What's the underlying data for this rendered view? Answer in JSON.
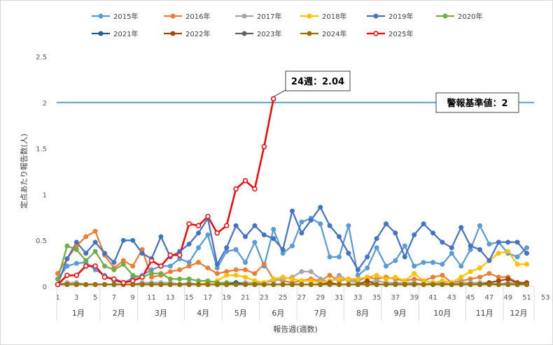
{
  "chart_data": {
    "type": "line",
    "xlabel": "報告週(週数)",
    "ylabel": "定点あたり報告数(人)",
    "ylim": [
      0,
      2.5
    ],
    "yticks": [
      "0",
      "0.5",
      "1",
      "1.5",
      "2",
      "2.5"
    ],
    "xlim": [
      1,
      53
    ],
    "xticks": [
      1,
      3,
      5,
      7,
      9,
      11,
      13,
      15,
      17,
      19,
      21,
      23,
      25,
      27,
      29,
      31,
      33,
      35,
      37,
      39,
      41,
      43,
      45,
      47,
      49,
      51,
      53
    ],
    "months": [
      {
        "label": "1月",
        "start": 1,
        "end": 5
      },
      {
        "label": "2月",
        "start": 6,
        "end": 9
      },
      {
        "label": "3月",
        "start": 10,
        "end": 14
      },
      {
        "label": "4月",
        "start": 15,
        "end": 18
      },
      {
        "label": "5月",
        "start": 19,
        "end": 22
      },
      {
        "label": "6月",
        "start": 23,
        "end": 26
      },
      {
        "label": "7月",
        "start": 27,
        "end": 31
      },
      {
        "label": "8月",
        "start": 32,
        "end": 35
      },
      {
        "label": "9月",
        "start": 36,
        "end": 39
      },
      {
        "label": "10月",
        "start": 40,
        "end": 44
      },
      {
        "label": "11月",
        "start": 45,
        "end": 48
      },
      {
        "label": "12月",
        "start": 49,
        "end": 53
      }
    ],
    "grid": false,
    "legend_position": "top",
    "threshold": {
      "value": 2,
      "label": "警報基準値：2",
      "color": "#5b9bd5"
    },
    "annotation": {
      "label": "24週：2.04",
      "x": 24,
      "y": 2.04
    },
    "series": [
      {
        "name": "2015年",
        "color": "#5b9bd5",
        "values": [
          0.08,
          0.22,
          0.25,
          0.26,
          0.18,
          0.12,
          0.06,
          0.04,
          0.09,
          0.12,
          0.18,
          0.22,
          0.22,
          0.3,
          0.26,
          0.42,
          0.56,
          0.2,
          0.38,
          0.4,
          0.26,
          0.48,
          0.22,
          0.62,
          0.36,
          0.44,
          0.7,
          0.74,
          0.68,
          0.32,
          0.32,
          0.66,
          0.12,
          0.2,
          0.42,
          0.22,
          0.28,
          0.44,
          0.22,
          0.26,
          0.26,
          0.24,
          0.36,
          0.22,
          0.4,
          0.66,
          0.46,
          0.48,
          0.36,
          0.32,
          0.42
        ]
      },
      {
        "name": "2016年",
        "color": "#ed7d31",
        "values": [
          0.14,
          0.3,
          0.44,
          0.54,
          0.6,
          0.34,
          0.2,
          0.28,
          0.22,
          0.4,
          0.1,
          0.12,
          0.16,
          0.18,
          0.22,
          0.26,
          0.2,
          0.14,
          0.16,
          0.18,
          0.18,
          0.14,
          0.24,
          0.08,
          0.06,
          0.04,
          0.06,
          0.08,
          0.06,
          0.12,
          0.06,
          0.08,
          0.06,
          0.1,
          0.08,
          0.1,
          0.08,
          0.06,
          0.08,
          0.06,
          0.1,
          0.12,
          0.04,
          0.06,
          0.08,
          0.1,
          0.14,
          0.1,
          0.1,
          0.04,
          0.04
        ]
      },
      {
        "name": "2017年",
        "color": "#a5a5a5",
        "values": [
          0.02,
          0.04,
          0.04,
          0.02,
          0.02,
          0.02,
          0.02,
          0.02,
          0.02,
          0.04,
          0.04,
          0.04,
          0.04,
          0.02,
          0.04,
          0.02,
          0.02,
          0.02,
          0.04,
          0.04,
          0.04,
          0.04,
          0.04,
          0.06,
          0.08,
          0.1,
          0.16,
          0.16,
          0.08,
          0.04,
          0.12,
          0.06,
          0.04,
          0.04,
          0.06,
          0.04,
          0.04,
          0.04,
          0.04,
          0.02,
          0.04,
          0.04,
          0.02,
          0.04,
          0.04,
          0.04,
          0.04,
          0.02,
          0.04,
          0.04,
          0.02
        ]
      },
      {
        "name": "2018年",
        "color": "#ffc000",
        "values": [
          0.02,
          0.02,
          0.02,
          0.02,
          0.02,
          0.02,
          0.02,
          0.02,
          0.02,
          0.02,
          0.02,
          0.02,
          0.02,
          0.02,
          0.02,
          0.02,
          0.04,
          0.06,
          0.12,
          0.12,
          0.1,
          0.06,
          0.04,
          0.08,
          0.1,
          0.08,
          0.06,
          0.06,
          0.04,
          0.06,
          0.08,
          0.08,
          0.08,
          0.1,
          0.12,
          0.08,
          0.1,
          0.06,
          0.14,
          0.06,
          0.04,
          0.06,
          0.04,
          0.1,
          0.16,
          0.2,
          0.28,
          0.36,
          0.38,
          0.24,
          0.24
        ]
      },
      {
        "name": "2019年",
        "color": "#4472c4",
        "values": [
          0.02,
          0.3,
          0.48,
          0.36,
          0.48,
          0.36,
          0.26,
          0.5,
          0.5,
          0.36,
          0.3,
          0.54,
          0.32,
          0.38,
          0.46,
          0.58,
          0.74,
          0.24,
          0.42,
          0.66,
          0.54,
          0.66,
          0.56,
          0.52,
          0.4,
          0.82,
          0.58,
          0.72,
          0.86,
          0.66,
          0.54,
          0.36,
          0.18,
          0.32,
          0.52,
          0.68,
          0.58,
          0.32,
          0.56,
          0.68,
          0.58,
          0.48,
          0.42,
          0.64,
          0.44,
          0.4,
          0.28,
          0.48,
          0.48,
          0.48,
          0.36
        ]
      },
      {
        "name": "2020年",
        "color": "#70ad47",
        "values": [
          0.08,
          0.44,
          0.4,
          0.28,
          0.38,
          0.22,
          0.18,
          0.24,
          0.12,
          0.1,
          0.14,
          0.14,
          0.08,
          0.08,
          0.08,
          0.06,
          0.06,
          0.04,
          0.04,
          0.04,
          0.02,
          0.02,
          0.02,
          0.02,
          0.02,
          0.02,
          0.02,
          0.02,
          0.02,
          0.02,
          0.02,
          0.02,
          0.02,
          0.02,
          0.02,
          0.02,
          0.02,
          0.02,
          0.02,
          0.02,
          0.02,
          0.02,
          0.02,
          0.02,
          0.02,
          0.02,
          0.02,
          0.02,
          0.02,
          0.02,
          0.02
        ]
      },
      {
        "name": "2021年",
        "color": "#255e91",
        "values": [
          0.02,
          0.02,
          0.02,
          0.02,
          0.02,
          0.02,
          0.02,
          0.02,
          0.02,
          0.02,
          0.02,
          0.02,
          0.02,
          0.02,
          0.02,
          0.02,
          0.02,
          0.02,
          0.02,
          0.04,
          0.02,
          0.02,
          0.02,
          0.02,
          0.02,
          0.02,
          0.02,
          0.02,
          0.02,
          0.02,
          0.02,
          0.02,
          0.02,
          0.02,
          0.02,
          0.02,
          0.02,
          0.02,
          0.02,
          0.02,
          0.02,
          0.02,
          0.02,
          0.02,
          0.02,
          0.02,
          0.02,
          0.02,
          0.02,
          0.02,
          0.02
        ]
      },
      {
        "name": "2022年",
        "color": "#9e480e",
        "values": [
          0.02,
          0.02,
          0.02,
          0.02,
          0.02,
          0.02,
          0.02,
          0.02,
          0.02,
          0.02,
          0.02,
          0.02,
          0.02,
          0.02,
          0.02,
          0.02,
          0.02,
          0.02,
          0.02,
          0.02,
          0.02,
          0.02,
          0.02,
          0.02,
          0.02,
          0.02,
          0.02,
          0.02,
          0.02,
          0.04,
          0.02,
          0.02,
          0.02,
          0.06,
          0.02,
          0.02,
          0.02,
          0.02,
          0.02,
          0.02,
          0.02,
          0.02,
          0.02,
          0.02,
          0.02,
          0.02,
          0.04,
          0.06,
          0.08,
          0.04,
          0.04
        ]
      },
      {
        "name": "2023年",
        "color": "#636363",
        "values": [
          0.02,
          0.02,
          0.02,
          0.02,
          0.02,
          0.02,
          0.02,
          0.02,
          0.02,
          0.02,
          0.02,
          0.02,
          0.02,
          0.02,
          0.02,
          0.02,
          0.02,
          0.02,
          0.02,
          0.02,
          0.02,
          0.02,
          0.02,
          0.02,
          0.02,
          0.02,
          0.02,
          0.02,
          0.02,
          0.02,
          0.02,
          0.02,
          0.02,
          0.02,
          0.02,
          0.02,
          0.02,
          0.02,
          0.02,
          0.02,
          0.02,
          0.02,
          0.02,
          0.02,
          0.02,
          0.02,
          0.02,
          0.02,
          0.02,
          0.02,
          0.02
        ]
      },
      {
        "name": "2024年",
        "color": "#997300",
        "values": [
          0.02,
          0.02,
          0.02,
          0.02,
          0.02,
          0.02,
          0.02,
          0.02,
          0.02,
          0.02,
          0.02,
          0.02,
          0.02,
          0.02,
          0.02,
          0.02,
          0.02,
          0.02,
          0.02,
          0.02,
          0.02,
          0.02,
          0.02,
          0.02,
          0.02,
          0.02,
          0.02,
          0.02,
          0.02,
          0.02,
          0.02,
          0.02,
          0.02,
          0.02,
          0.02,
          0.02,
          0.02,
          0.02,
          0.02,
          0.02,
          0.02,
          0.02,
          0.02,
          0.02,
          0.02,
          0.02,
          0.02,
          0.02,
          0.02,
          0.02,
          0.02
        ]
      },
      {
        "name": "2025年",
        "color": "#ff0000",
        "values": [
          0.02,
          0.12,
          0.12,
          0.22,
          0.22,
          0.1,
          0.08,
          0.04,
          0.06,
          0.1,
          0.28,
          0.22,
          0.34,
          0.34,
          0.68,
          0.66,
          0.76,
          0.58,
          0.66,
          1.06,
          1.15,
          1.06,
          1.52,
          2.04
        ]
      }
    ]
  }
}
